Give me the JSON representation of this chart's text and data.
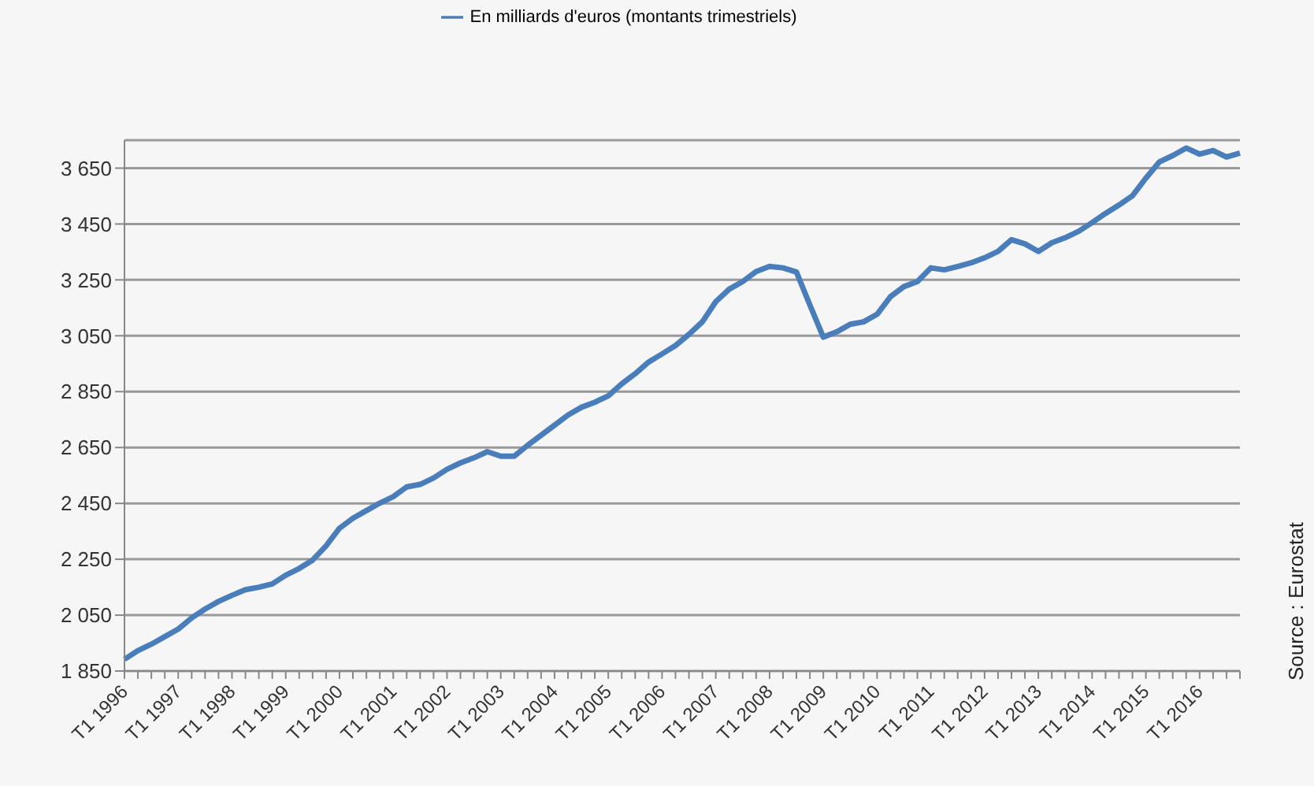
{
  "chart_data": {
    "type": "line",
    "categories": [
      "T1 1996",
      null,
      null,
      null,
      "T1 1997",
      null,
      null,
      null,
      "T1 1998",
      null,
      null,
      null,
      "T1 1999",
      null,
      null,
      null,
      "T1 2000",
      null,
      null,
      null,
      "T1 2001",
      null,
      null,
      null,
      "T1 2002",
      null,
      null,
      null,
      "T1 2003",
      null,
      null,
      null,
      "T1 2004",
      null,
      null,
      null,
      "T1 2005",
      null,
      null,
      null,
      "T1 2006",
      null,
      null,
      null,
      "T1 2007",
      null,
      null,
      null,
      "T1 2008",
      null,
      null,
      null,
      "T1 2009",
      null,
      null,
      null,
      "T1 2010",
      null,
      null,
      null,
      "T1 2011",
      null,
      null,
      null,
      "T1 2012",
      null,
      null,
      null,
      "T1 2013",
      null,
      null,
      null,
      "T1 2014",
      null,
      null,
      null,
      "T1 2015",
      null,
      null,
      null,
      "T1 2016",
      null,
      null,
      null
    ],
    "series": [
      {
        "name": "En milliards d'euros (montants trimestriels)",
        "color": "#4a7ebb",
        "values": [
          1892,
          1923,
          1946,
          1973,
          2000,
          2040,
          2072,
          2099,
          2121,
          2141,
          2150,
          2162,
          2193,
          2217,
          2247,
          2298,
          2361,
          2397,
          2424,
          2451,
          2474,
          2509,
          2518,
          2541,
          2572,
          2595,
          2613,
          2635,
          2619,
          2619,
          2658,
          2694,
          2730,
          2766,
          2794,
          2812,
          2835,
          2878,
          2914,
          2956,
          2985,
          3015,
          3055,
          3100,
          3172,
          3217,
          3244,
          3280,
          3298,
          3293,
          3278,
          3160,
          3045,
          3064,
          3091,
          3100,
          3127,
          3190,
          3226,
          3244,
          3293,
          3286,
          3298,
          3311,
          3329,
          3352,
          3394,
          3379,
          3352,
          3383,
          3401,
          3424,
          3455,
          3488,
          3518,
          3551,
          3614,
          3672,
          3695,
          3722,
          3700,
          3713,
          3690,
          3704
        ]
      }
    ],
    "ylim": [
      1850,
      3750
    ],
    "yticks": [
      {
        "value": 1850,
        "label": "1 850"
      },
      {
        "value": 2050,
        "label": "2 050"
      },
      {
        "value": 2250,
        "label": "2 250"
      },
      {
        "value": 2450,
        "label": "2 450"
      },
      {
        "value": 2650,
        "label": "2 650"
      },
      {
        "value": 2850,
        "label": "2 850"
      },
      {
        "value": 3050,
        "label": "3 050"
      },
      {
        "value": 3250,
        "label": "3 250"
      },
      {
        "value": 3450,
        "label": "3 450"
      },
      {
        "value": 3650,
        "label": "3 650"
      }
    ],
    "grid": "y",
    "legend": "top",
    "marker": "none",
    "line_style": "solid",
    "annotations": [
      "Source : Eurostat"
    ]
  }
}
